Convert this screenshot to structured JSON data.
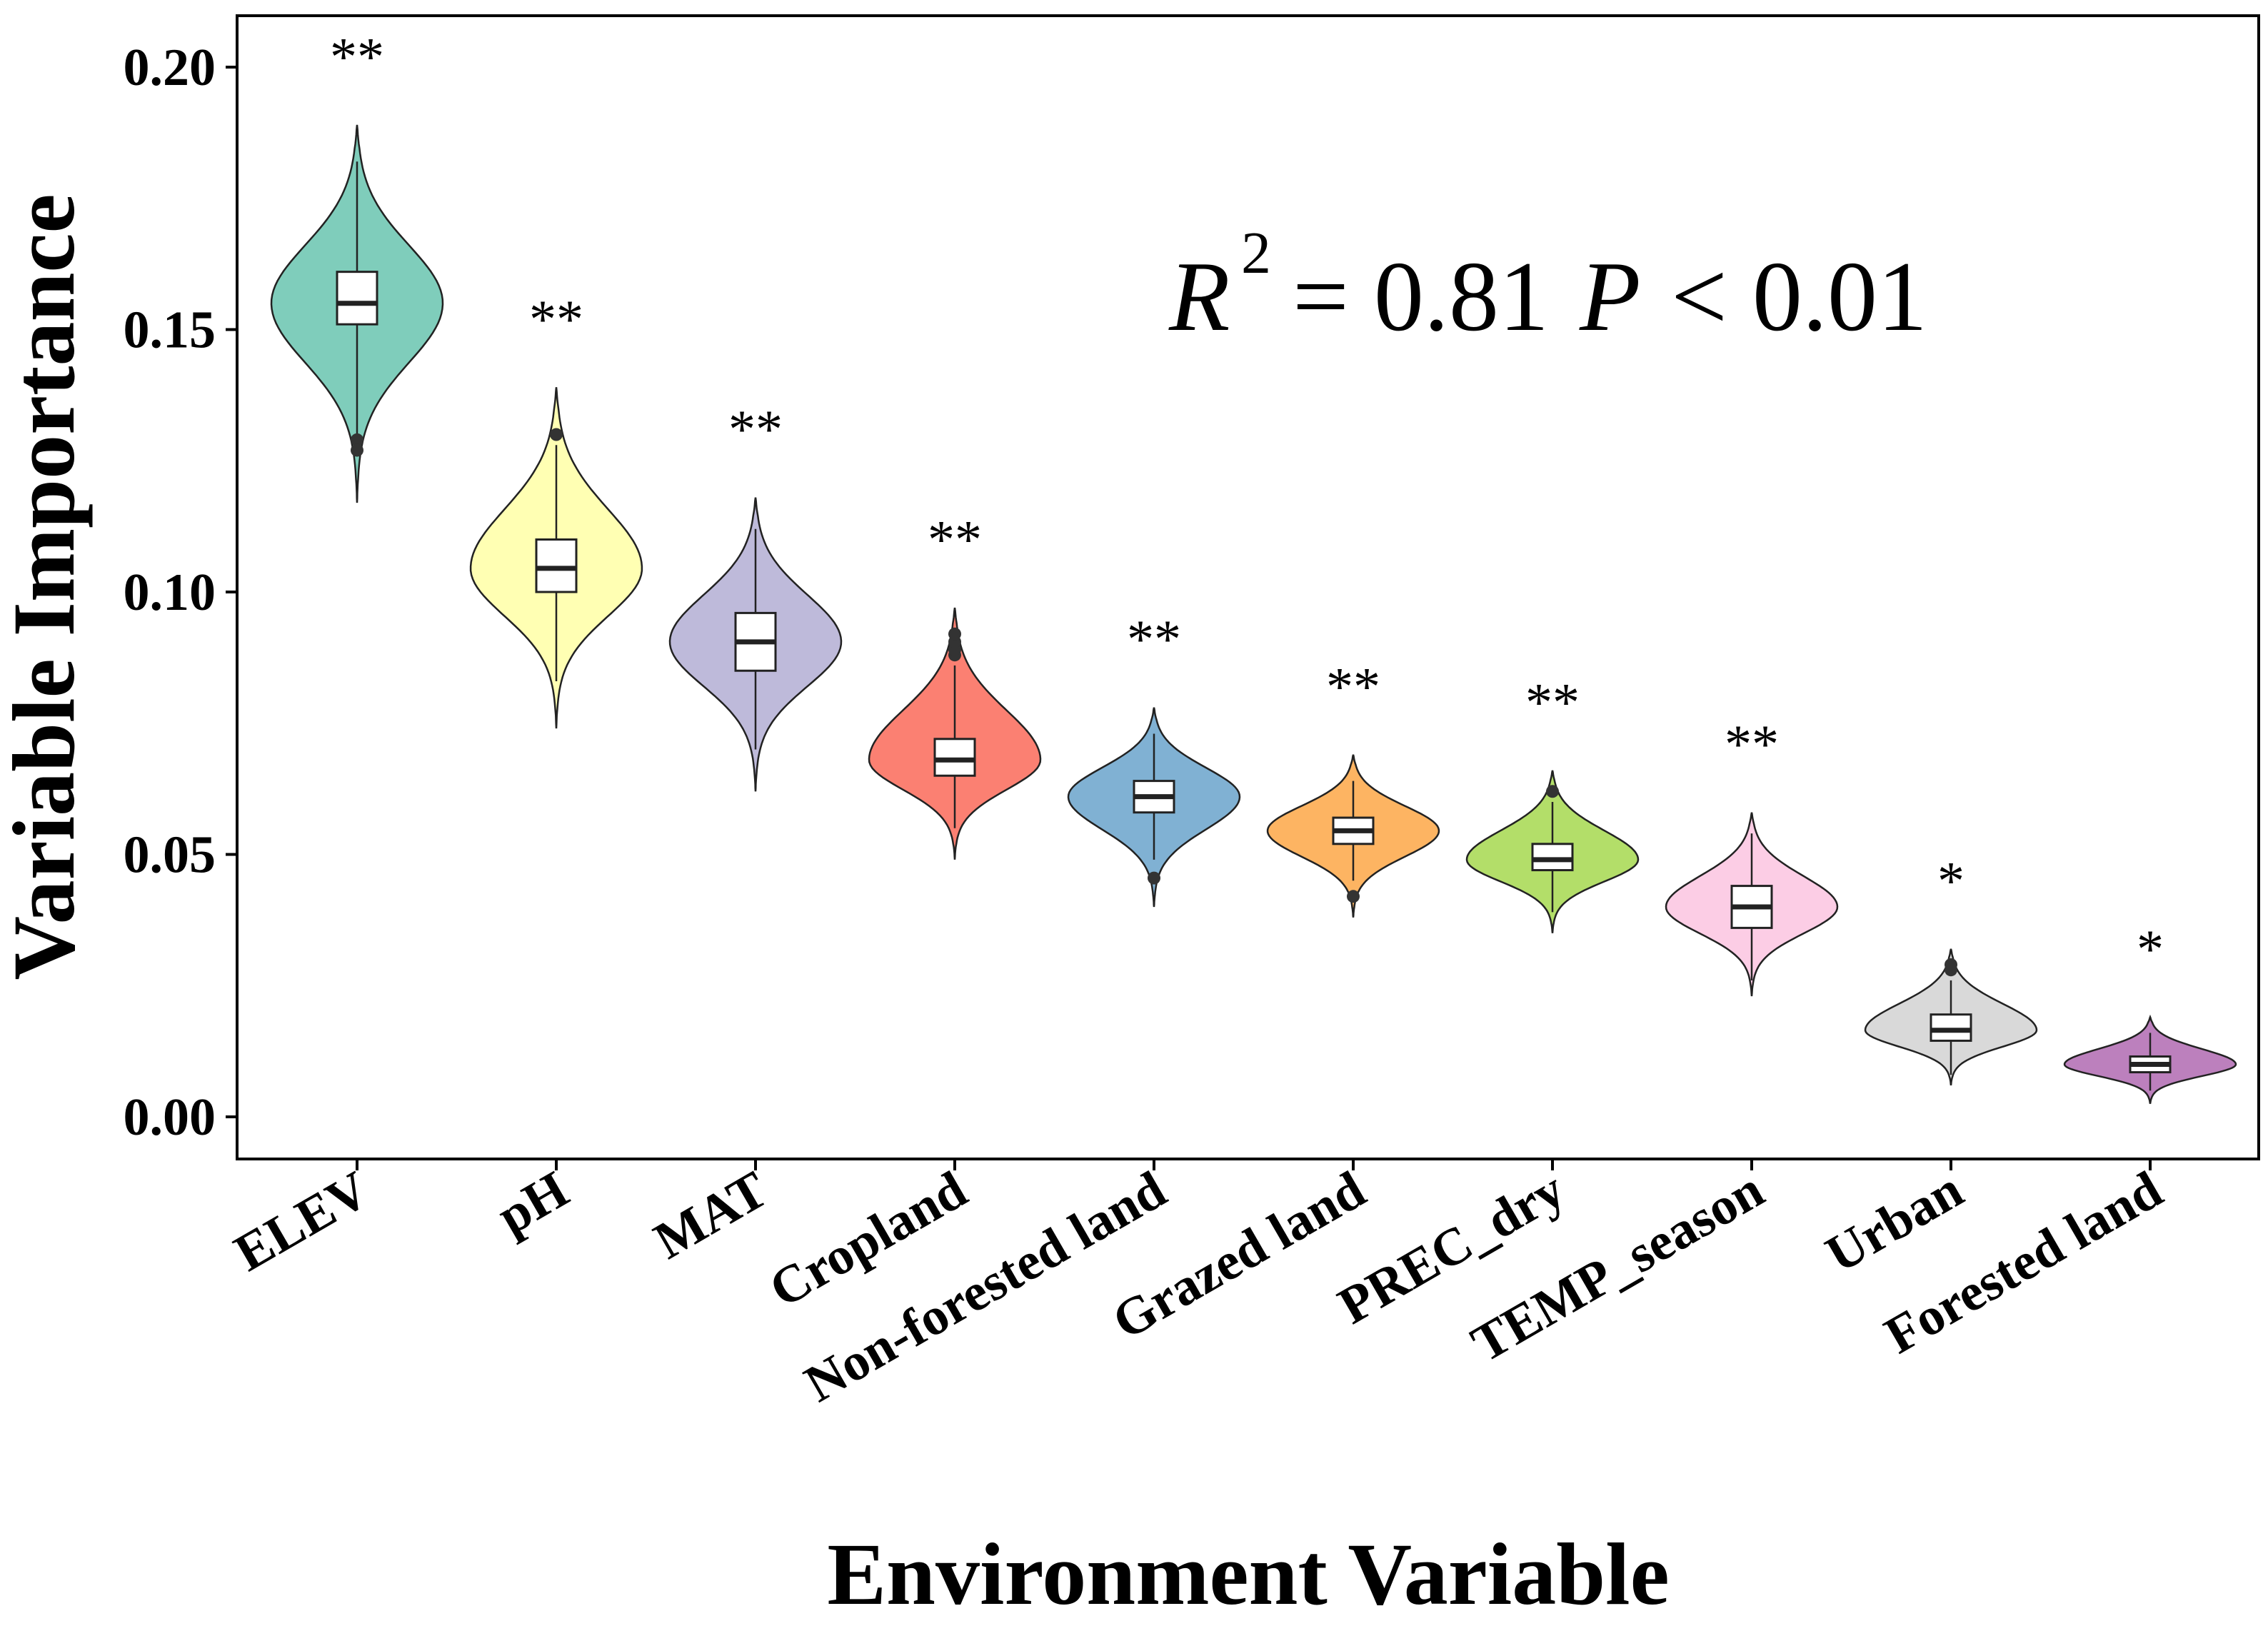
{
  "chart_data": {
    "type": "violin",
    "xlabel": "Environment Variable",
    "ylabel": "Variable Importance",
    "ylim": [
      -0.0075,
      0.21
    ],
    "yticks": [
      "0.00",
      "0.05",
      "0.10",
      "0.15",
      "0.20"
    ],
    "ytick_values": [
      0,
      0.05,
      0.1,
      0.15,
      0.2
    ],
    "grid": false,
    "annotation": {
      "r_label": "R",
      "r_power": "2",
      "r_value": "= 0.81",
      "p_label": "P",
      "p_value": "< 0.01"
    },
    "categories": [
      "ELEV",
      "pH",
      "MAT",
      "Cropland",
      "Non-forested land",
      "Grazed land",
      "PREC_dry",
      "TEMP_season",
      "Urban",
      "Forested land"
    ],
    "significance": [
      "**",
      "**",
      "**",
      "**",
      "**",
      "**",
      "**",
      "**",
      "*",
      "*"
    ],
    "colors": [
      "#7fcdbb",
      "#ffffb3",
      "#bebada",
      "#fb8072",
      "#80b1d3",
      "#fdb462",
      "#b3de69",
      "#fccde5",
      "#d9d9d9",
      "#bc80bd"
    ],
    "violins": [
      {
        "min": 0.117,
        "max": 0.189,
        "q1": 0.151,
        "median": 0.155,
        "q3": 0.161,
        "whisker_low": 0.13,
        "whisker_high": 0.182,
        "outliers": [
          0.129,
          0.127
        ]
      },
      {
        "min": 0.074,
        "max": 0.139,
        "q1": 0.1,
        "median": 0.1045,
        "q3": 0.11,
        "whisker_low": 0.083,
        "whisker_high": 0.128,
        "outliers": [
          0.13
        ]
      },
      {
        "min": 0.062,
        "max": 0.118,
        "q1": 0.085,
        "median": 0.0905,
        "q3": 0.096,
        "whisker_low": 0.07,
        "whisker_high": 0.112,
        "outliers": []
      },
      {
        "min": 0.049,
        "max": 0.097,
        "q1": 0.065,
        "median": 0.068,
        "q3": 0.072,
        "whisker_low": 0.055,
        "whisker_high": 0.086,
        "outliers": [
          0.088,
          0.089,
          0.0905,
          0.092
        ]
      },
      {
        "min": 0.04,
        "max": 0.078,
        "q1": 0.058,
        "median": 0.061,
        "q3": 0.064,
        "whisker_low": 0.049,
        "whisker_high": 0.073,
        "outliers": [
          0.0455
        ]
      },
      {
        "min": 0.038,
        "max": 0.069,
        "q1": 0.052,
        "median": 0.0545,
        "q3": 0.057,
        "whisker_low": 0.045,
        "whisker_high": 0.064,
        "outliers": [
          0.042
        ]
      },
      {
        "min": 0.035,
        "max": 0.066,
        "q1": 0.047,
        "median": 0.049,
        "q3": 0.052,
        "whisker_low": 0.039,
        "whisker_high": 0.06,
        "outliers": [
          0.062
        ]
      },
      {
        "min": 0.023,
        "max": 0.058,
        "q1": 0.036,
        "median": 0.04,
        "q3": 0.044,
        "whisker_low": 0.026,
        "whisker_high": 0.054,
        "outliers": []
      },
      {
        "min": 0.006,
        "max": 0.032,
        "q1": 0.0145,
        "median": 0.0165,
        "q3": 0.0195,
        "whisker_low": 0.008,
        "whisker_high": 0.026,
        "outliers": [
          0.028,
          0.029
        ]
      },
      {
        "min": 0.0025,
        "max": 0.019,
        "q1": 0.0085,
        "median": 0.01,
        "q3": 0.0115,
        "whisker_low": 0.005,
        "whisker_high": 0.016,
        "outliers": []
      }
    ]
  }
}
